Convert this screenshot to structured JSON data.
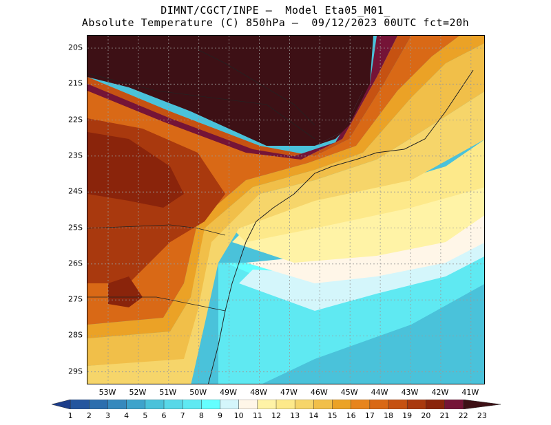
{
  "title": {
    "line1": "DIMNT/CGCT/INPE –  Model Eta05_M01_",
    "line2": "Absolute Temperature (C) 850hPa –  09/12/2023 00UTC fct=20h"
  },
  "map": {
    "lat_labels": [
      "20S",
      "21S",
      "22S",
      "23S",
      "24S",
      "25S",
      "26S",
      "27S",
      "28S",
      "29S"
    ],
    "lon_labels": [
      "53W",
      "52W",
      "51W",
      "50W",
      "49W",
      "48W",
      "47W",
      "46W",
      "45W",
      "44W",
      "43W",
      "42W",
      "41W"
    ],
    "grid": true
  },
  "colorbar": {
    "labels": [
      "1",
      "2",
      "3",
      "4",
      "5",
      "6",
      "7",
      "8",
      "9",
      "10",
      "11",
      "12",
      "13",
      "14",
      "15",
      "16",
      "17",
      "18",
      "19",
      "20",
      "21",
      "22",
      "23"
    ],
    "colors": [
      "#1c3d8a",
      "#24569e",
      "#2b6eae",
      "#3689bd",
      "#3ea3cb",
      "#4ac2da",
      "#58d8e8",
      "#5fe9f2",
      "#64ffff",
      "#d4f6fb",
      "#fff6e8",
      "#fff3a6",
      "#fde98a",
      "#f6d56a",
      "#f1bf49",
      "#eba226",
      "#e7851d",
      "#d96916",
      "#c65212",
      "#a9390e",
      "#8a240b",
      "#751437",
      "#3d1015"
    ]
  }
}
